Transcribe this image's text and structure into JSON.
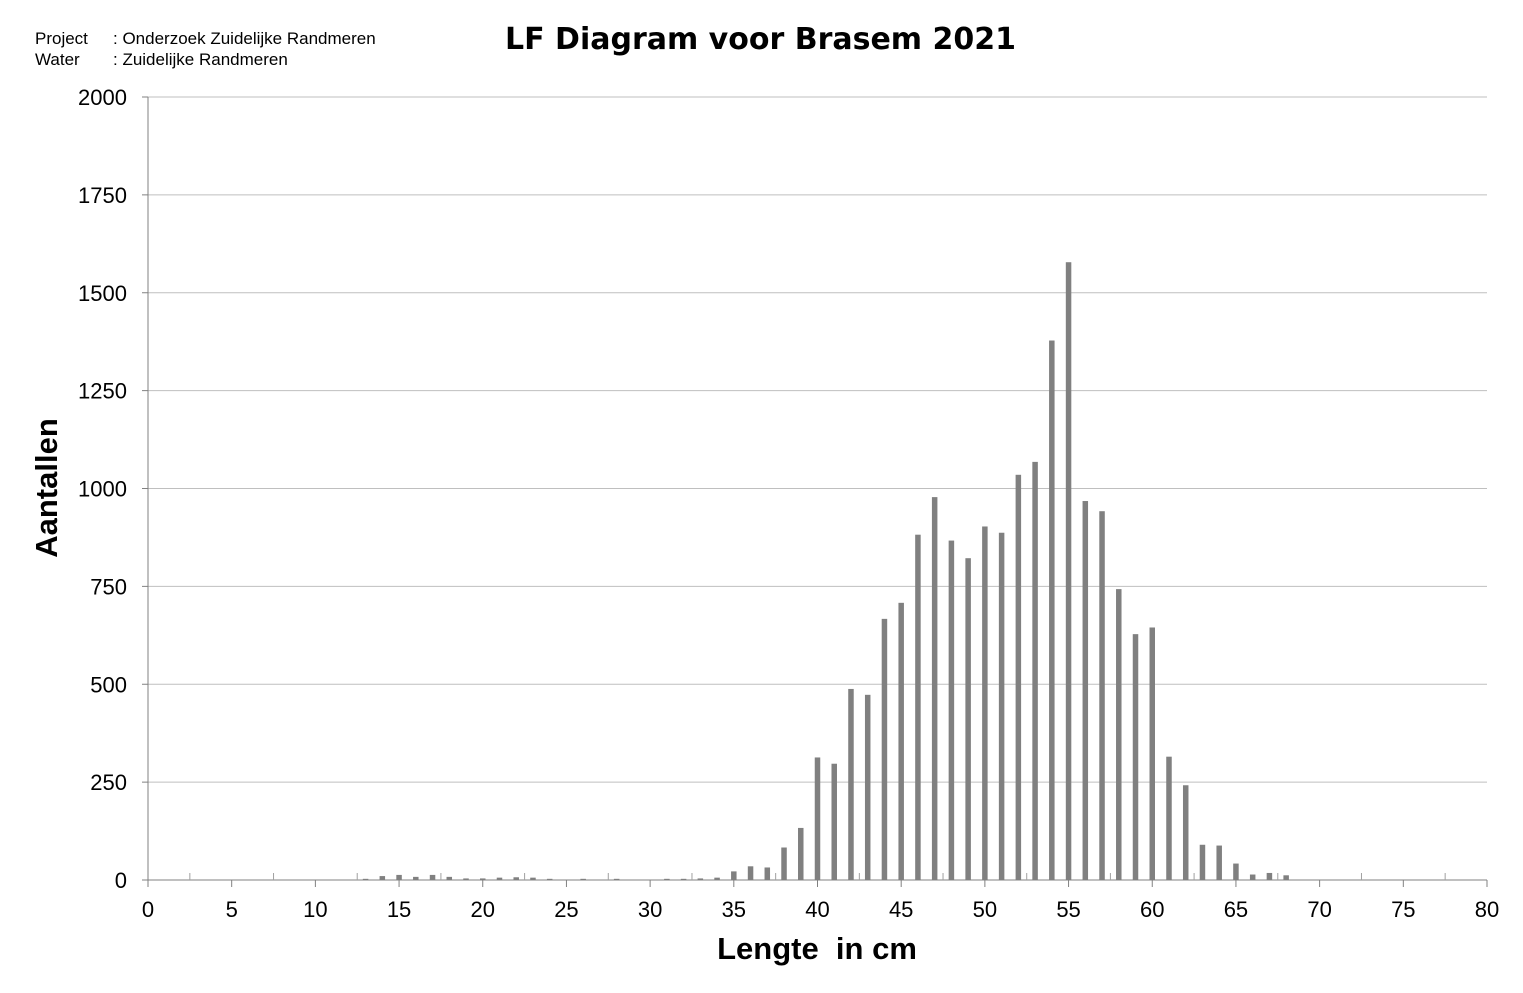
{
  "header": {
    "project_key": "Project",
    "project_value": ": Onderzoek Zuidelijke Randmeren",
    "water_key": "Water",
    "water_value": ": Zuidelijke Randmeren"
  },
  "chart_data": {
    "type": "bar",
    "title": "LF Diagram voor Brasem 2021",
    "xlabel": "Lengte  in cm",
    "ylabel": "Aantallen",
    "xlim": [
      0,
      80
    ],
    "ylim": [
      0,
      2000
    ],
    "x_ticks": [
      0,
      5,
      10,
      15,
      20,
      25,
      30,
      35,
      40,
      45,
      50,
      55,
      60,
      65,
      70,
      75,
      80
    ],
    "y_ticks": [
      0,
      250,
      500,
      750,
      1000,
      1250,
      1500,
      1750,
      2000
    ],
    "grid": "horizontal",
    "bar_color": "#808080",
    "x": [
      13,
      14,
      15,
      16,
      17,
      18,
      19,
      20,
      21,
      22,
      23,
      24,
      26,
      28,
      31,
      32,
      33,
      34,
      35,
      36,
      37,
      38,
      39,
      40,
      41,
      42,
      43,
      44,
      45,
      46,
      47,
      48,
      49,
      50,
      51,
      52,
      53,
      54,
      55,
      56,
      57,
      58,
      59,
      60,
      61,
      62,
      63,
      64,
      65,
      66,
      67,
      68
    ],
    "values": [
      3,
      10,
      13,
      8,
      13,
      8,
      4,
      4,
      6,
      7,
      6,
      3,
      3,
      3,
      3,
      3,
      4,
      6,
      22,
      35,
      32,
      83,
      133,
      313,
      297,
      488,
      473,
      667,
      708,
      882,
      978,
      867,
      822,
      903,
      887,
      1035,
      1068,
      1378,
      1578,
      968,
      942,
      743,
      628,
      645,
      315,
      242,
      90,
      88,
      42,
      14,
      18,
      12
    ]
  }
}
